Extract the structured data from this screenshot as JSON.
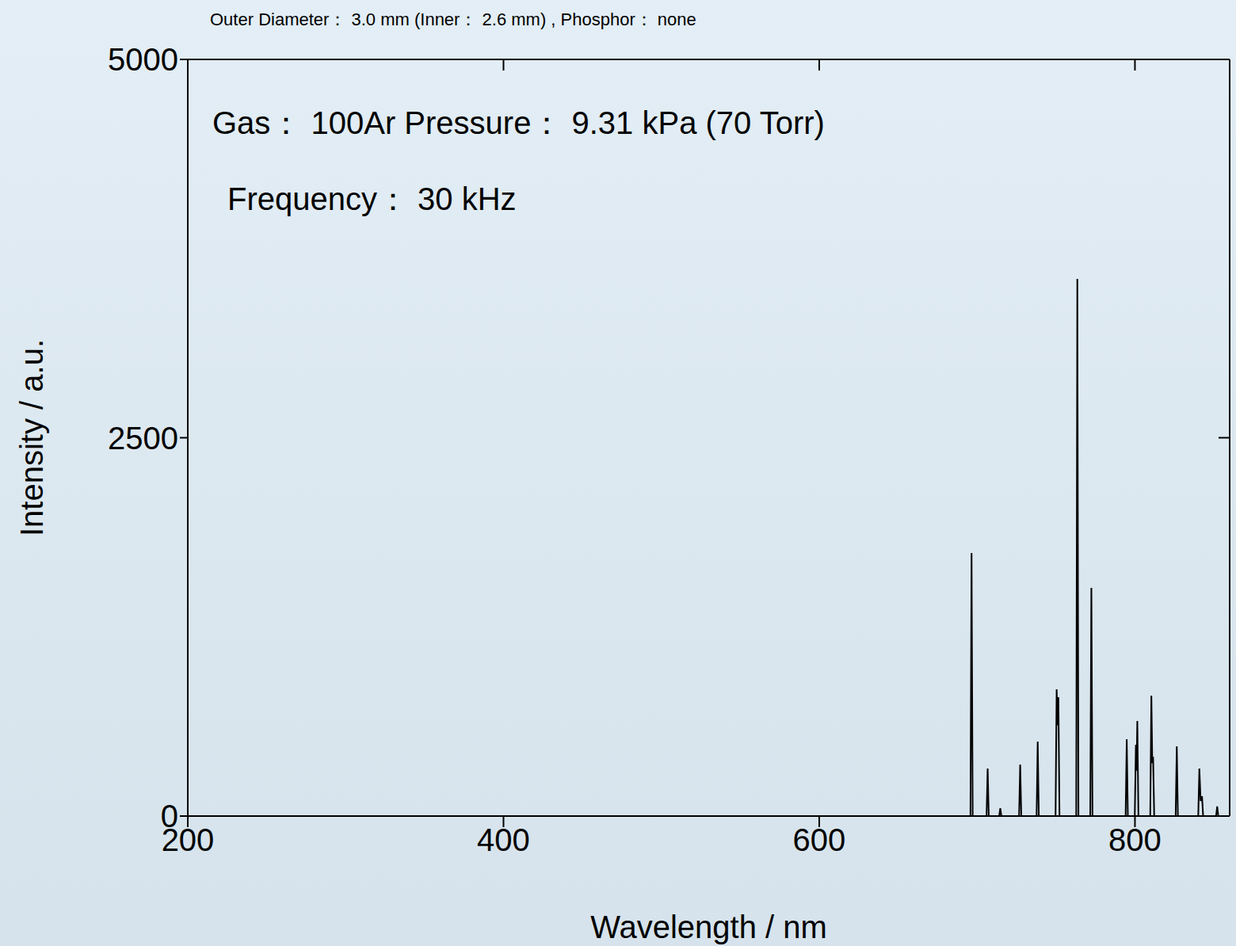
{
  "chart_data": {
    "type": "line",
    "title": "Outer Diameter： 3.0 mm (Inner： 2.6 mm) , Phosphor： none",
    "annotations": [
      "Gas： 100Ar  Pressure： 9.31 kPa (70 Torr)",
      "Frequency： 30 kHz"
    ],
    "x_label": "Wavelength / nm",
    "y_label": "Intensity / a.u.",
    "x": [
      690,
      695.8,
      696.5,
      697.2,
      706.0,
      706.7,
      707.4,
      714.0,
      714.7,
      715.4,
      726.6,
      727.3,
      728.0,
      737.7,
      738.4,
      739.1,
      749.7,
      750.4,
      751.0,
      751.5,
      752.2,
      762.8,
      763.5,
      764.2,
      771.7,
      772.4,
      773.1,
      794.1,
      794.8,
      795.5,
      799.9,
      800.6,
      801.0,
      801.5,
      802.2,
      809.7,
      810.4,
      811.0,
      811.5,
      812.2,
      825.8,
      826.5,
      827.2,
      840.1,
      840.8,
      841.6,
      842.5,
      843.2,
      851.4,
      852.1,
      852.8,
      860
    ],
    "values": [
      0,
      0,
      1738,
      0,
      0,
      314,
      0,
      0,
      52,
      0,
      0,
      340,
      0,
      0,
      492,
      0,
      0,
      838,
      600,
      785,
      0,
      0,
      3550,
      0,
      0,
      1508,
      0,
      0,
      508,
      0,
      0,
      471,
      300,
      628,
      0,
      0,
      796,
      350,
      393,
      0,
      0,
      461,
      0,
      0,
      314,
      100,
      131,
      0,
      0,
      63,
      0,
      0
    ],
    "color": "#000000",
    "xlim": [
      200,
      860
    ],
    "ylim": [
      0,
      5000
    ],
    "xticks": [
      200,
      400,
      600,
      800
    ],
    "yticks": [
      0,
      2500,
      5000
    ],
    "grid": false
  }
}
